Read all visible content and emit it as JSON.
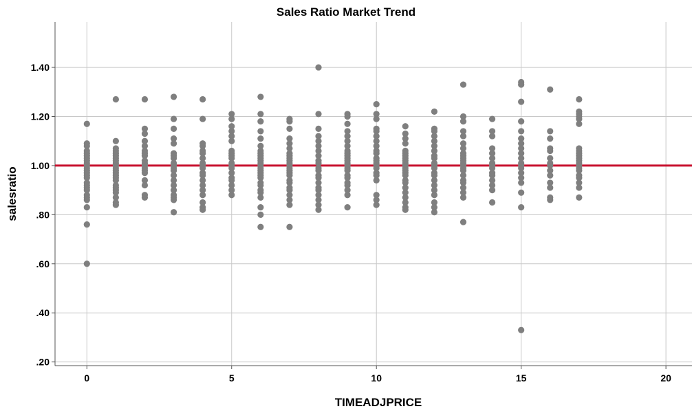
{
  "chart_data": {
    "type": "scatter",
    "title": "Sales Ratio Market Trend",
    "xlabel": "TIMEADJPRICE",
    "ylabel": "salesratio",
    "xlim": [
      -1.1,
      20.9
    ],
    "ylim": [
      0.185,
      1.585
    ],
    "xticks": [
      0,
      5,
      10,
      15,
      20
    ],
    "xtick_labels": [
      "0",
      "5",
      "10",
      "15",
      "20"
    ],
    "yticks": [
      0.2,
      0.4,
      0.6,
      0.8,
      1.0,
      1.2,
      1.4
    ],
    "ytick_labels": [
      ".20",
      ".40",
      ".60",
      ".80",
      "1.00",
      "1.20",
      "1.40"
    ],
    "grid": true,
    "reference_line": {
      "y": 1.0,
      "color": "#c8102e"
    },
    "marker_color": "#7f7f7f",
    "points": [
      {
        "x": 0,
        "y": 1.17
      },
      {
        "x": 0,
        "y": 1.09
      },
      {
        "x": 0,
        "y": 1.08
      },
      {
        "x": 0,
        "y": 1.06
      },
      {
        "x": 0,
        "y": 1.05
      },
      {
        "x": 0,
        "y": 1.04
      },
      {
        "x": 0,
        "y": 1.03
      },
      {
        "x": 0,
        "y": 1.02
      },
      {
        "x": 0,
        "y": 1.01
      },
      {
        "x": 0,
        "y": 1.0
      },
      {
        "x": 0,
        "y": 0.99
      },
      {
        "x": 0,
        "y": 0.98
      },
      {
        "x": 0,
        "y": 0.97
      },
      {
        "x": 0,
        "y": 0.96
      },
      {
        "x": 0,
        "y": 0.95
      },
      {
        "x": 0,
        "y": 0.93
      },
      {
        "x": 0,
        "y": 0.92
      },
      {
        "x": 0,
        "y": 0.91
      },
      {
        "x": 0,
        "y": 0.9
      },
      {
        "x": 0,
        "y": 0.88
      },
      {
        "x": 0,
        "y": 0.87
      },
      {
        "x": 0,
        "y": 0.86
      },
      {
        "x": 0,
        "y": 0.83
      },
      {
        "x": 0,
        "y": 0.76
      },
      {
        "x": 0,
        "y": 0.6
      },
      {
        "x": 1,
        "y": 1.27
      },
      {
        "x": 1,
        "y": 1.1
      },
      {
        "x": 1,
        "y": 1.07
      },
      {
        "x": 1,
        "y": 1.06
      },
      {
        "x": 1,
        "y": 1.05
      },
      {
        "x": 1,
        "y": 1.04
      },
      {
        "x": 1,
        "y": 1.03
      },
      {
        "x": 1,
        "y": 1.02
      },
      {
        "x": 1,
        "y": 1.01
      },
      {
        "x": 1,
        "y": 1.0
      },
      {
        "x": 1,
        "y": 0.99
      },
      {
        "x": 1,
        "y": 0.98
      },
      {
        "x": 1,
        "y": 0.97
      },
      {
        "x": 1,
        "y": 0.96
      },
      {
        "x": 1,
        "y": 0.95
      },
      {
        "x": 1,
        "y": 0.94
      },
      {
        "x": 1,
        "y": 0.92
      },
      {
        "x": 1,
        "y": 0.91
      },
      {
        "x": 1,
        "y": 0.9
      },
      {
        "x": 1,
        "y": 0.89
      },
      {
        "x": 1,
        "y": 0.87
      },
      {
        "x": 1,
        "y": 0.85
      },
      {
        "x": 1,
        "y": 0.84
      },
      {
        "x": 2,
        "y": 1.27
      },
      {
        "x": 2,
        "y": 1.15
      },
      {
        "x": 2,
        "y": 1.13
      },
      {
        "x": 2,
        "y": 1.1
      },
      {
        "x": 2,
        "y": 1.08
      },
      {
        "x": 2,
        "y": 1.06
      },
      {
        "x": 2,
        "y": 1.05
      },
      {
        "x": 2,
        "y": 1.04
      },
      {
        "x": 2,
        "y": 1.02
      },
      {
        "x": 2,
        "y": 1.01
      },
      {
        "x": 2,
        "y": 1.0
      },
      {
        "x": 2,
        "y": 0.99
      },
      {
        "x": 2,
        "y": 0.98
      },
      {
        "x": 2,
        "y": 0.97
      },
      {
        "x": 2,
        "y": 0.94
      },
      {
        "x": 2,
        "y": 0.92
      },
      {
        "x": 2,
        "y": 0.88
      },
      {
        "x": 2,
        "y": 0.87
      },
      {
        "x": 3,
        "y": 1.28
      },
      {
        "x": 3,
        "y": 1.19
      },
      {
        "x": 3,
        "y": 1.15
      },
      {
        "x": 3,
        "y": 1.11
      },
      {
        "x": 3,
        "y": 1.09
      },
      {
        "x": 3,
        "y": 1.05
      },
      {
        "x": 3,
        "y": 1.04
      },
      {
        "x": 3,
        "y": 1.03
      },
      {
        "x": 3,
        "y": 1.01
      },
      {
        "x": 3,
        "y": 1.0
      },
      {
        "x": 3,
        "y": 0.99
      },
      {
        "x": 3,
        "y": 0.98
      },
      {
        "x": 3,
        "y": 0.96
      },
      {
        "x": 3,
        "y": 0.94
      },
      {
        "x": 3,
        "y": 0.92
      },
      {
        "x": 3,
        "y": 0.9
      },
      {
        "x": 3,
        "y": 0.88
      },
      {
        "x": 3,
        "y": 0.87
      },
      {
        "x": 3,
        "y": 0.86
      },
      {
        "x": 3,
        "y": 0.81
      },
      {
        "x": 4,
        "y": 1.27
      },
      {
        "x": 4,
        "y": 1.19
      },
      {
        "x": 4,
        "y": 1.09
      },
      {
        "x": 4,
        "y": 1.08
      },
      {
        "x": 4,
        "y": 1.06
      },
      {
        "x": 4,
        "y": 1.05
      },
      {
        "x": 4,
        "y": 1.03
      },
      {
        "x": 4,
        "y": 1.01
      },
      {
        "x": 4,
        "y": 1.0
      },
      {
        "x": 4,
        "y": 0.99
      },
      {
        "x": 4,
        "y": 0.97
      },
      {
        "x": 4,
        "y": 0.96
      },
      {
        "x": 4,
        "y": 0.94
      },
      {
        "x": 4,
        "y": 0.92
      },
      {
        "x": 4,
        "y": 0.9
      },
      {
        "x": 4,
        "y": 0.88
      },
      {
        "x": 4,
        "y": 0.85
      },
      {
        "x": 4,
        "y": 0.83
      },
      {
        "x": 4,
        "y": 0.82
      },
      {
        "x": 5,
        "y": 1.21
      },
      {
        "x": 5,
        "y": 1.19
      },
      {
        "x": 5,
        "y": 1.16
      },
      {
        "x": 5,
        "y": 1.14
      },
      {
        "x": 5,
        "y": 1.12
      },
      {
        "x": 5,
        "y": 1.1
      },
      {
        "x": 5,
        "y": 1.06
      },
      {
        "x": 5,
        "y": 1.05
      },
      {
        "x": 5,
        "y": 1.04
      },
      {
        "x": 5,
        "y": 1.03
      },
      {
        "x": 5,
        "y": 1.01
      },
      {
        "x": 5,
        "y": 1.0
      },
      {
        "x": 5,
        "y": 0.99
      },
      {
        "x": 5,
        "y": 0.97
      },
      {
        "x": 5,
        "y": 0.95
      },
      {
        "x": 5,
        "y": 0.94
      },
      {
        "x": 5,
        "y": 0.92
      },
      {
        "x": 5,
        "y": 0.9
      },
      {
        "x": 5,
        "y": 0.88
      },
      {
        "x": 6,
        "y": 1.28
      },
      {
        "x": 6,
        "y": 1.21
      },
      {
        "x": 6,
        "y": 1.18
      },
      {
        "x": 6,
        "y": 1.14
      },
      {
        "x": 6,
        "y": 1.11
      },
      {
        "x": 6,
        "y": 1.08
      },
      {
        "x": 6,
        "y": 1.06
      },
      {
        "x": 6,
        "y": 1.05
      },
      {
        "x": 6,
        "y": 1.04
      },
      {
        "x": 6,
        "y": 1.03
      },
      {
        "x": 6,
        "y": 1.02
      },
      {
        "x": 6,
        "y": 1.01
      },
      {
        "x": 6,
        "y": 1.0
      },
      {
        "x": 6,
        "y": 0.99
      },
      {
        "x": 6,
        "y": 0.98
      },
      {
        "x": 6,
        "y": 0.97
      },
      {
        "x": 6,
        "y": 0.96
      },
      {
        "x": 6,
        "y": 0.95
      },
      {
        "x": 6,
        "y": 0.93
      },
      {
        "x": 6,
        "y": 0.92
      },
      {
        "x": 6,
        "y": 0.9
      },
      {
        "x": 6,
        "y": 0.89
      },
      {
        "x": 6,
        "y": 0.87
      },
      {
        "x": 6,
        "y": 0.83
      },
      {
        "x": 6,
        "y": 0.8
      },
      {
        "x": 6,
        "y": 0.75
      },
      {
        "x": 7,
        "y": 1.19
      },
      {
        "x": 7,
        "y": 1.18
      },
      {
        "x": 7,
        "y": 1.15
      },
      {
        "x": 7,
        "y": 1.11
      },
      {
        "x": 7,
        "y": 1.09
      },
      {
        "x": 7,
        "y": 1.07
      },
      {
        "x": 7,
        "y": 1.05
      },
      {
        "x": 7,
        "y": 1.04
      },
      {
        "x": 7,
        "y": 1.03
      },
      {
        "x": 7,
        "y": 1.02
      },
      {
        "x": 7,
        "y": 1.01
      },
      {
        "x": 7,
        "y": 1.0
      },
      {
        "x": 7,
        "y": 0.99
      },
      {
        "x": 7,
        "y": 0.98
      },
      {
        "x": 7,
        "y": 0.97
      },
      {
        "x": 7,
        "y": 0.96
      },
      {
        "x": 7,
        "y": 0.94
      },
      {
        "x": 7,
        "y": 0.93
      },
      {
        "x": 7,
        "y": 0.91
      },
      {
        "x": 7,
        "y": 0.9
      },
      {
        "x": 7,
        "y": 0.88
      },
      {
        "x": 7,
        "y": 0.86
      },
      {
        "x": 7,
        "y": 0.84
      },
      {
        "x": 7,
        "y": 0.75
      },
      {
        "x": 8,
        "y": 1.4
      },
      {
        "x": 8,
        "y": 1.21
      },
      {
        "x": 8,
        "y": 1.15
      },
      {
        "x": 8,
        "y": 1.12
      },
      {
        "x": 8,
        "y": 1.1
      },
      {
        "x": 8,
        "y": 1.08
      },
      {
        "x": 8,
        "y": 1.06
      },
      {
        "x": 8,
        "y": 1.04
      },
      {
        "x": 8,
        "y": 1.02
      },
      {
        "x": 8,
        "y": 1.01
      },
      {
        "x": 8,
        "y": 0.99
      },
      {
        "x": 8,
        "y": 0.98
      },
      {
        "x": 8,
        "y": 0.96
      },
      {
        "x": 8,
        "y": 0.95
      },
      {
        "x": 8,
        "y": 0.93
      },
      {
        "x": 8,
        "y": 0.91
      },
      {
        "x": 8,
        "y": 0.9
      },
      {
        "x": 8,
        "y": 0.88
      },
      {
        "x": 8,
        "y": 0.86
      },
      {
        "x": 8,
        "y": 0.84
      },
      {
        "x": 8,
        "y": 0.82
      },
      {
        "x": 9,
        "y": 1.21
      },
      {
        "x": 9,
        "y": 1.2
      },
      {
        "x": 9,
        "y": 1.17
      },
      {
        "x": 9,
        "y": 1.14
      },
      {
        "x": 9,
        "y": 1.12
      },
      {
        "x": 9,
        "y": 1.1
      },
      {
        "x": 9,
        "y": 1.08
      },
      {
        "x": 9,
        "y": 1.06
      },
      {
        "x": 9,
        "y": 1.05
      },
      {
        "x": 9,
        "y": 1.04
      },
      {
        "x": 9,
        "y": 1.03
      },
      {
        "x": 9,
        "y": 1.02
      },
      {
        "x": 9,
        "y": 1.01
      },
      {
        "x": 9,
        "y": 1.0
      },
      {
        "x": 9,
        "y": 0.99
      },
      {
        "x": 9,
        "y": 0.98
      },
      {
        "x": 9,
        "y": 0.96
      },
      {
        "x": 9,
        "y": 0.95
      },
      {
        "x": 9,
        "y": 0.93
      },
      {
        "x": 9,
        "y": 0.92
      },
      {
        "x": 9,
        "y": 0.9
      },
      {
        "x": 9,
        "y": 0.88
      },
      {
        "x": 9,
        "y": 0.83
      },
      {
        "x": 10,
        "y": 1.25
      },
      {
        "x": 10,
        "y": 1.21
      },
      {
        "x": 10,
        "y": 1.19
      },
      {
        "x": 10,
        "y": 1.15
      },
      {
        "x": 10,
        "y": 1.14
      },
      {
        "x": 10,
        "y": 1.12
      },
      {
        "x": 10,
        "y": 1.1
      },
      {
        "x": 10,
        "y": 1.08
      },
      {
        "x": 10,
        "y": 1.06
      },
      {
        "x": 10,
        "y": 1.05
      },
      {
        "x": 10,
        "y": 1.03
      },
      {
        "x": 10,
        "y": 1.02
      },
      {
        "x": 10,
        "y": 1.01
      },
      {
        "x": 10,
        "y": 1.0
      },
      {
        "x": 10,
        "y": 0.99
      },
      {
        "x": 10,
        "y": 0.97
      },
      {
        "x": 10,
        "y": 0.96
      },
      {
        "x": 10,
        "y": 0.94
      },
      {
        "x": 10,
        "y": 0.88
      },
      {
        "x": 10,
        "y": 0.86
      },
      {
        "x": 10,
        "y": 0.84
      },
      {
        "x": 11,
        "y": 1.16
      },
      {
        "x": 11,
        "y": 1.13
      },
      {
        "x": 11,
        "y": 1.11
      },
      {
        "x": 11,
        "y": 1.09
      },
      {
        "x": 11,
        "y": 1.06
      },
      {
        "x": 11,
        "y": 1.05
      },
      {
        "x": 11,
        "y": 1.04
      },
      {
        "x": 11,
        "y": 1.03
      },
      {
        "x": 11,
        "y": 1.02
      },
      {
        "x": 11,
        "y": 1.01
      },
      {
        "x": 11,
        "y": 1.0
      },
      {
        "x": 11,
        "y": 0.99
      },
      {
        "x": 11,
        "y": 0.98
      },
      {
        "x": 11,
        "y": 0.97
      },
      {
        "x": 11,
        "y": 0.96
      },
      {
        "x": 11,
        "y": 0.94
      },
      {
        "x": 11,
        "y": 0.93
      },
      {
        "x": 11,
        "y": 0.91
      },
      {
        "x": 11,
        "y": 0.89
      },
      {
        "x": 11,
        "y": 0.87
      },
      {
        "x": 11,
        "y": 0.85
      },
      {
        "x": 11,
        "y": 0.83
      },
      {
        "x": 11,
        "y": 0.82
      },
      {
        "x": 12,
        "y": 1.22
      },
      {
        "x": 12,
        "y": 1.15
      },
      {
        "x": 12,
        "y": 1.14
      },
      {
        "x": 12,
        "y": 1.12
      },
      {
        "x": 12,
        "y": 1.1
      },
      {
        "x": 12,
        "y": 1.08
      },
      {
        "x": 12,
        "y": 1.06
      },
      {
        "x": 12,
        "y": 1.04
      },
      {
        "x": 12,
        "y": 1.03
      },
      {
        "x": 12,
        "y": 1.01
      },
      {
        "x": 12,
        "y": 1.0
      },
      {
        "x": 12,
        "y": 0.99
      },
      {
        "x": 12,
        "y": 0.97
      },
      {
        "x": 12,
        "y": 0.96
      },
      {
        "x": 12,
        "y": 0.94
      },
      {
        "x": 12,
        "y": 0.92
      },
      {
        "x": 12,
        "y": 0.9
      },
      {
        "x": 12,
        "y": 0.88
      },
      {
        "x": 12,
        "y": 0.85
      },
      {
        "x": 12,
        "y": 0.83
      },
      {
        "x": 12,
        "y": 0.81
      },
      {
        "x": 13,
        "y": 1.33
      },
      {
        "x": 13,
        "y": 1.2
      },
      {
        "x": 13,
        "y": 1.18
      },
      {
        "x": 13,
        "y": 1.14
      },
      {
        "x": 13,
        "y": 1.12
      },
      {
        "x": 13,
        "y": 1.09
      },
      {
        "x": 13,
        "y": 1.07
      },
      {
        "x": 13,
        "y": 1.05
      },
      {
        "x": 13,
        "y": 1.04
      },
      {
        "x": 13,
        "y": 1.03
      },
      {
        "x": 13,
        "y": 1.02
      },
      {
        "x": 13,
        "y": 1.01
      },
      {
        "x": 13,
        "y": 1.0
      },
      {
        "x": 13,
        "y": 0.99
      },
      {
        "x": 13,
        "y": 0.98
      },
      {
        "x": 13,
        "y": 0.96
      },
      {
        "x": 13,
        "y": 0.94
      },
      {
        "x": 13,
        "y": 0.93
      },
      {
        "x": 13,
        "y": 0.91
      },
      {
        "x": 13,
        "y": 0.89
      },
      {
        "x": 13,
        "y": 0.87
      },
      {
        "x": 13,
        "y": 0.77
      },
      {
        "x": 14,
        "y": 1.19
      },
      {
        "x": 14,
        "y": 1.14
      },
      {
        "x": 14,
        "y": 1.12
      },
      {
        "x": 14,
        "y": 1.07
      },
      {
        "x": 14,
        "y": 1.05
      },
      {
        "x": 14,
        "y": 1.03
      },
      {
        "x": 14,
        "y": 1.01
      },
      {
        "x": 14,
        "y": 1.0
      },
      {
        "x": 14,
        "y": 0.99
      },
      {
        "x": 14,
        "y": 0.97
      },
      {
        "x": 14,
        "y": 0.96
      },
      {
        "x": 14,
        "y": 0.94
      },
      {
        "x": 14,
        "y": 0.92
      },
      {
        "x": 14,
        "y": 0.9
      },
      {
        "x": 14,
        "y": 0.85
      },
      {
        "x": 15,
        "y": 1.34
      },
      {
        "x": 15,
        "y": 1.33
      },
      {
        "x": 15,
        "y": 1.26
      },
      {
        "x": 15,
        "y": 1.18
      },
      {
        "x": 15,
        "y": 1.14
      },
      {
        "x": 15,
        "y": 1.11
      },
      {
        "x": 15,
        "y": 1.09
      },
      {
        "x": 15,
        "y": 1.07
      },
      {
        "x": 15,
        "y": 1.05
      },
      {
        "x": 15,
        "y": 1.03
      },
      {
        "x": 15,
        "y": 1.01
      },
      {
        "x": 15,
        "y": 1.0
      },
      {
        "x": 15,
        "y": 0.99
      },
      {
        "x": 15,
        "y": 0.97
      },
      {
        "x": 15,
        "y": 0.95
      },
      {
        "x": 15,
        "y": 0.93
      },
      {
        "x": 15,
        "y": 0.89
      },
      {
        "x": 15,
        "y": 0.83
      },
      {
        "x": 15,
        "y": 0.33
      },
      {
        "x": 16,
        "y": 1.31
      },
      {
        "x": 16,
        "y": 1.14
      },
      {
        "x": 16,
        "y": 1.11
      },
      {
        "x": 16,
        "y": 1.07
      },
      {
        "x": 16,
        "y": 1.06
      },
      {
        "x": 16,
        "y": 1.03
      },
      {
        "x": 16,
        "y": 1.01
      },
      {
        "x": 16,
        "y": 1.0
      },
      {
        "x": 16,
        "y": 0.98
      },
      {
        "x": 16,
        "y": 0.96
      },
      {
        "x": 16,
        "y": 0.93
      },
      {
        "x": 16,
        "y": 0.91
      },
      {
        "x": 16,
        "y": 0.87
      },
      {
        "x": 16,
        "y": 0.86
      },
      {
        "x": 17,
        "y": 1.27
      },
      {
        "x": 17,
        "y": 1.22
      },
      {
        "x": 17,
        "y": 1.21
      },
      {
        "x": 17,
        "y": 1.2
      },
      {
        "x": 17,
        "y": 1.19
      },
      {
        "x": 17,
        "y": 1.17
      },
      {
        "x": 17,
        "y": 1.07
      },
      {
        "x": 17,
        "y": 1.06
      },
      {
        "x": 17,
        "y": 1.05
      },
      {
        "x": 17,
        "y": 1.04
      },
      {
        "x": 17,
        "y": 1.03
      },
      {
        "x": 17,
        "y": 1.02
      },
      {
        "x": 17,
        "y": 1.01
      },
      {
        "x": 17,
        "y": 1.0
      },
      {
        "x": 17,
        "y": 0.99
      },
      {
        "x": 17,
        "y": 0.98
      },
      {
        "x": 17,
        "y": 0.96
      },
      {
        "x": 17,
        "y": 0.95
      },
      {
        "x": 17,
        "y": 0.93
      },
      {
        "x": 17,
        "y": 0.91
      },
      {
        "x": 17,
        "y": 0.87
      }
    ]
  }
}
